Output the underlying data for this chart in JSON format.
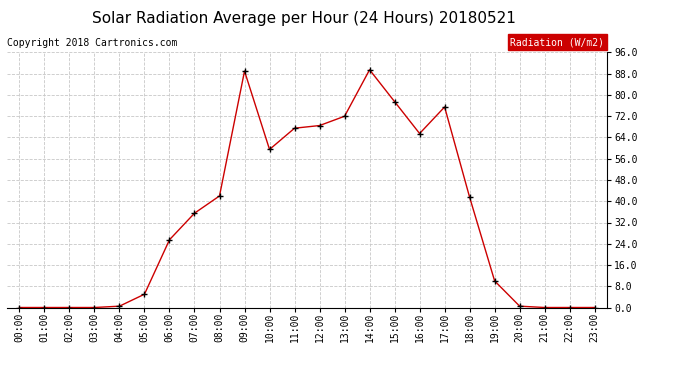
{
  "title": "Solar Radiation Average per Hour (24 Hours) 20180521",
  "copyright": "Copyright 2018 Cartronics.com",
  "legend_label": "Radiation (W/m2)",
  "hours": [
    "00:00",
    "01:00",
    "02:00",
    "03:00",
    "04:00",
    "05:00",
    "06:00",
    "07:00",
    "08:00",
    "09:00",
    "10:00",
    "11:00",
    "12:00",
    "13:00",
    "14:00",
    "15:00",
    "16:00",
    "17:00",
    "18:00",
    "19:00",
    "20:00",
    "21:00",
    "22:00",
    "23:00"
  ],
  "values": [
    0.0,
    0.0,
    0.0,
    0.0,
    0.5,
    5.0,
    25.5,
    35.5,
    42.0,
    89.0,
    59.5,
    67.5,
    68.5,
    72.0,
    89.5,
    77.5,
    65.5,
    75.5,
    41.5,
    10.0,
    0.5,
    0.0,
    0.0,
    0.0
  ],
  "ylim": [
    0.0,
    96.0
  ],
  "yticks": [
    0.0,
    8.0,
    16.0,
    24.0,
    32.0,
    40.0,
    48.0,
    56.0,
    64.0,
    72.0,
    80.0,
    88.0,
    96.0
  ],
  "line_color": "#cc0000",
  "marker": "+",
  "marker_color": "#000000",
  "bg_color": "#ffffff",
  "grid_color": "#c8c8c8",
  "legend_bg": "#cc0000",
  "legend_text_color": "#ffffff",
  "title_fontsize": 11,
  "copyright_fontsize": 7,
  "tick_fontsize": 7,
  "legend_fontsize": 7
}
